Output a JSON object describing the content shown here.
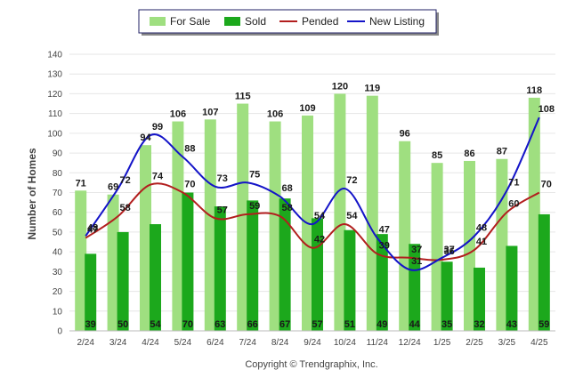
{
  "chart_data": {
    "type": "bar",
    "ylabel": "Number of Homes",
    "xlabel": "",
    "ylim": [
      0,
      140
    ],
    "yticks": [
      0,
      10,
      20,
      30,
      40,
      50,
      60,
      70,
      80,
      90,
      100,
      110,
      120,
      130,
      140
    ],
    "grid": true,
    "legend_position": "top-center",
    "categories": [
      "2/24",
      "3/24",
      "4/24",
      "5/24",
      "6/24",
      "7/24",
      "8/24",
      "9/24",
      "10/24",
      "11/24",
      "12/24",
      "1/25",
      "2/25",
      "3/25",
      "4/25"
    ],
    "series": [
      {
        "name": "For Sale",
        "type": "bar",
        "color": "#9fdf80",
        "values": [
          71,
          69,
          94,
          106,
          107,
          115,
          106,
          109,
          120,
          119,
          96,
          85,
          86,
          87,
          118
        ]
      },
      {
        "name": "Sold",
        "type": "bar",
        "color": "#1ca81c",
        "values": [
          39,
          50,
          54,
          70,
          63,
          66,
          67,
          57,
          51,
          49,
          44,
          35,
          32,
          43,
          59
        ]
      },
      {
        "name": "Pended",
        "type": "line",
        "color": "#b21e1e",
        "values": [
          47,
          58,
          74,
          70,
          57,
          59,
          58,
          42,
          54,
          39,
          37,
          36,
          41,
          60,
          70
        ]
      },
      {
        "name": "New Listing",
        "type": "line",
        "color": "#1414c8",
        "values": [
          48,
          72,
          99,
          88,
          73,
          75,
          68,
          54,
          72,
          47,
          31,
          37,
          48,
          71,
          108
        ]
      }
    ]
  },
  "footer": {
    "copyright": "Copyright © Trendgraphix, Inc."
  }
}
